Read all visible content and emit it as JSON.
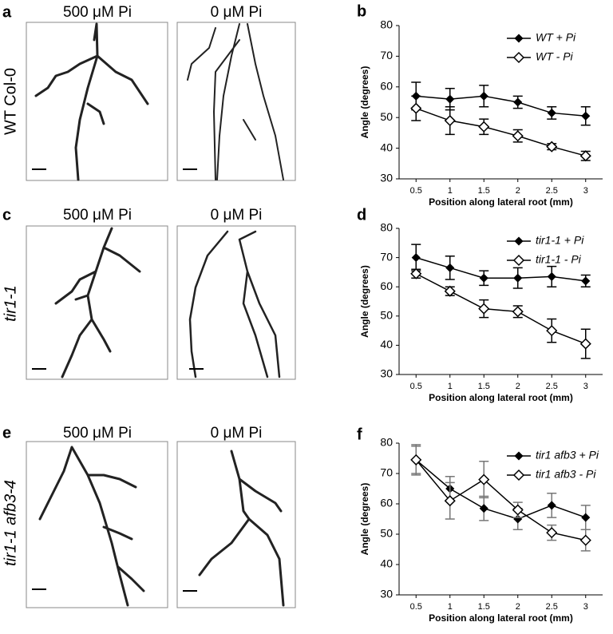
{
  "image_panels": [
    {
      "letter": "a",
      "row_label": "WT Col-0",
      "conditions": [
        "500 μM Pi",
        "0 μM Pi"
      ]
    },
    {
      "letter": "c",
      "row_label": "tir1-1",
      "conditions": [
        "500 μM Pi",
        "0 μM Pi"
      ]
    },
    {
      "letter": "e",
      "row_label": "tir1-1 afb3-4",
      "conditions": [
        "500 μM Pi",
        "0 μM Pi"
      ]
    }
  ],
  "chart_data": [
    {
      "type": "line",
      "panel_label": "b",
      "y_label": "Angle (degrees)",
      "x_label": "Position along lateral root (mm)",
      "x": [
        0.5,
        1,
        1.5,
        2,
        2.5,
        3
      ],
      "xlim": [
        0.25,
        3.25
      ],
      "xticks": [
        0.5,
        1,
        1.5,
        2,
        2.5,
        3
      ],
      "ylim": [
        30,
        80
      ],
      "yticks": [
        30,
        40,
        50,
        60,
        70,
        80
      ],
      "legend": "upper right",
      "error_color": "#000000",
      "series": [
        {
          "name": "WT  + Pi",
          "color": "#000000",
          "marker": "filled-diamond",
          "values": [
            57,
            56,
            57,
            55,
            51.5,
            50.5
          ],
          "errors": [
            4.5,
            3.5,
            3.5,
            2,
            2,
            3
          ]
        },
        {
          "name": "WT  - Pi",
          "color": "#000000",
          "marker": "open-diamond",
          "values": [
            53,
            49,
            47,
            44,
            40.5,
            37.5
          ],
          "errors": [
            4,
            4.5,
            2.5,
            2,
            1,
            1.5
          ]
        }
      ]
    },
    {
      "type": "line",
      "panel_label": "d",
      "y_label": "Angle (degrees)",
      "x_label": "Position along lateral root (mm)",
      "x": [
        0.5,
        1,
        1.5,
        2,
        2.5,
        3
      ],
      "xlim": [
        0.25,
        3.25
      ],
      "xticks": [
        0.5,
        1,
        1.5,
        2,
        2.5,
        3
      ],
      "ylim": [
        30,
        80
      ],
      "yticks": [
        30,
        40,
        50,
        60,
        70,
        80
      ],
      "legend": "upper right",
      "error_color": "#000000",
      "series": [
        {
          "name": "tir1-1 + Pi",
          "color": "#000000",
          "marker": "filled-diamond",
          "values": [
            70,
            66.5,
            63,
            63,
            63.5,
            62
          ],
          "errors": [
            4.5,
            4,
            2.5,
            3.5,
            3.5,
            2
          ]
        },
        {
          "name": "tir1-1 - Pi",
          "color": "#000000",
          "marker": "open-diamond",
          "values": [
            64.5,
            58.5,
            52.5,
            51.5,
            45,
            40.5
          ],
          "errors": [
            1.5,
            1.5,
            3,
            2,
            4,
            5
          ]
        }
      ]
    },
    {
      "type": "line",
      "panel_label": "f",
      "y_label": "Angle (degrees)",
      "x_label": "Position along lateral root (mm)",
      "x": [
        0.5,
        1,
        1.5,
        2,
        2.5,
        3
      ],
      "xlim": [
        0.25,
        3.25
      ],
      "xticks": [
        0.5,
        1,
        1.5,
        2,
        2.5,
        3
      ],
      "ylim": [
        30,
        80
      ],
      "yticks": [
        30,
        40,
        50,
        60,
        70,
        80
      ],
      "legend": "upper right",
      "error_color": "#777777",
      "series": [
        {
          "name": "tir1 afb3 + Pi",
          "color": "#000000",
          "marker": "filled-diamond",
          "values": [
            74.5,
            65,
            58.5,
            55,
            59.5,
            55.5
          ],
          "errors": [
            5,
            4,
            4,
            3.5,
            4,
            4
          ]
        },
        {
          "name": "tir1 afb3 - Pi",
          "color": "#000000",
          "marker": "open-diamond",
          "values": [
            74.5,
            61,
            68,
            58,
            50.5,
            48
          ],
          "errors": [
            4.5,
            6,
            6,
            2.5,
            2.5,
            3.5
          ]
        }
      ]
    }
  ]
}
